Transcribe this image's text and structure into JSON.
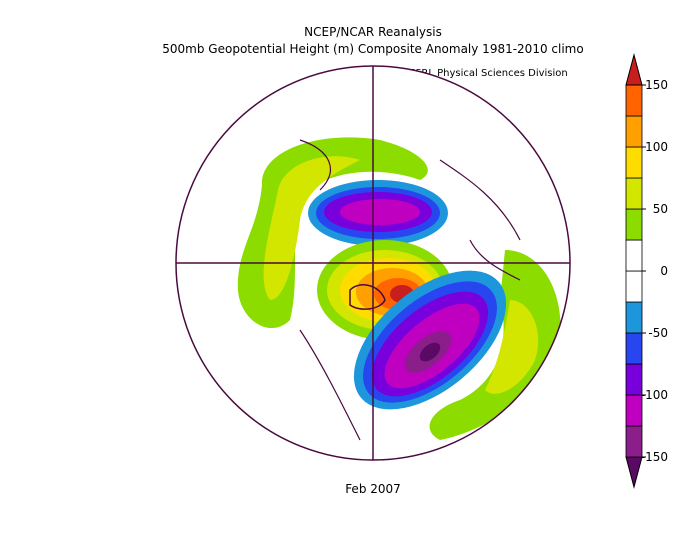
{
  "header": {
    "title": "NCEP/NCAR Reanalysis",
    "subtitle": "500mb Geopotential Height (m) Composite Anomaly 1981-2010 climo",
    "credit": "NOAA/ESRL Physical Sciences Division"
  },
  "footer": {
    "date": "Feb 2007"
  },
  "colorbar": {
    "levels": [
      -150,
      -125,
      -100,
      -75,
      -50,
      -25,
      0,
      25,
      50,
      75,
      100,
      125,
      150
    ],
    "ticks": [
      150,
      100,
      50,
      0,
      -50,
      -100,
      -150
    ],
    "colors": [
      "#5a0a64",
      "#8c1e8c",
      "#c000c0",
      "#7800dc",
      "#2846f0",
      "#1e96dc",
      "#ffffff",
      "#ffffff",
      "#8cdc00",
      "#d2e600",
      "#ffdc00",
      "#ffa000",
      "#ff6400",
      "#c81e1e"
    ]
  }
}
